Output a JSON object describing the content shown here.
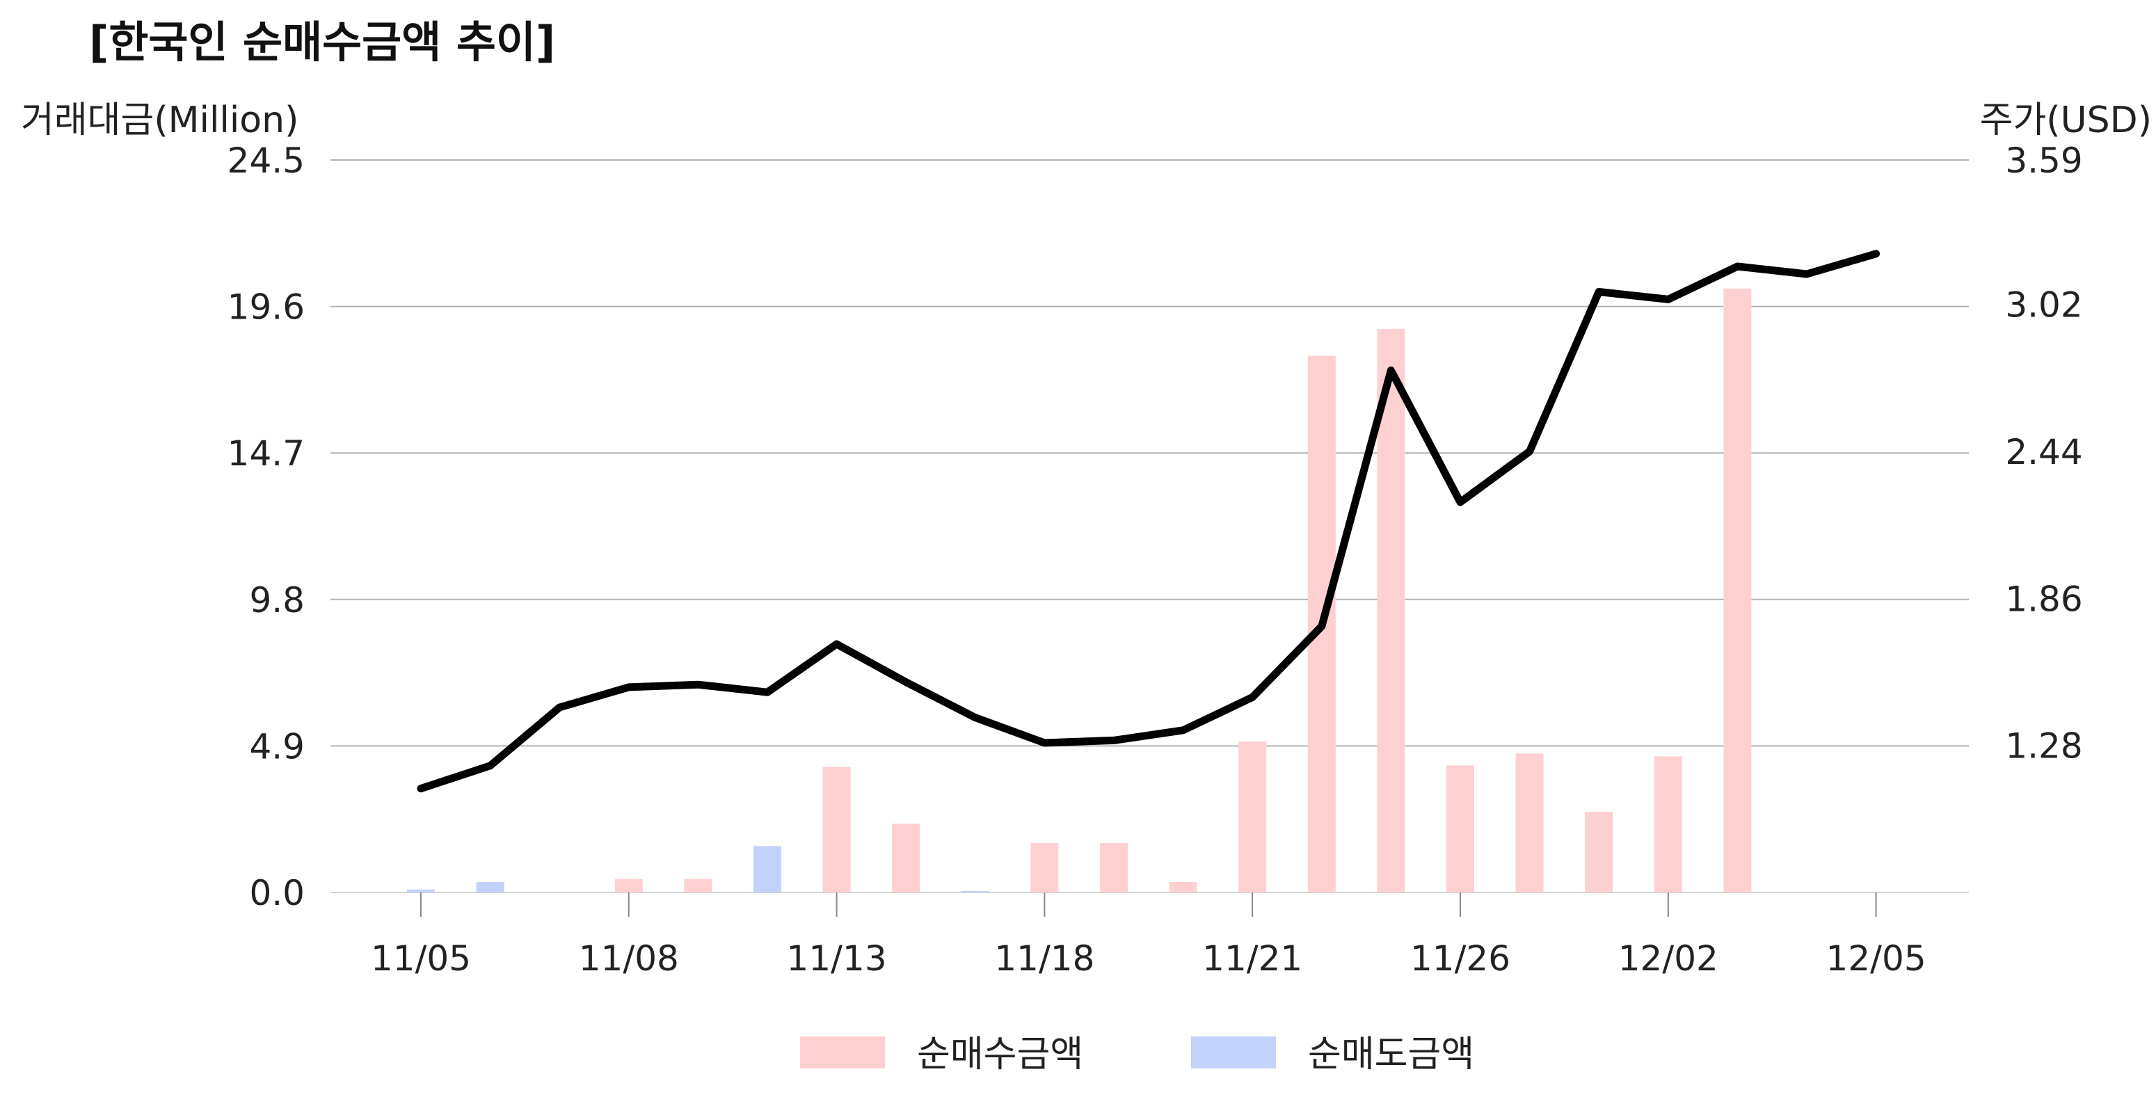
{
  "chart_data": {
    "type": "bar",
    "title": "[한국인 순매수금액 추이]",
    "ylabel": "거래대금(Million)",
    "y2label": "주가(USD)",
    "ylim": [
      0,
      24.5
    ],
    "y2lim": [
      0.7,
      3.59
    ],
    "yticks": [
      "0.0",
      "4.9",
      "9.8",
      "14.7",
      "19.6",
      "24.5"
    ],
    "y2ticks": [
      "1.28",
      "1.86",
      "2.44",
      "3.02",
      "3.59"
    ],
    "y2tick_values": [
      1.28,
      1.86,
      2.44,
      3.02,
      3.59
    ],
    "xtick_labels": [
      "11/05",
      "11/08",
      "11/13",
      "11/18",
      "11/21",
      "11/26",
      "12/02",
      "12/05"
    ],
    "xtick_index": [
      0,
      3,
      6,
      9,
      12,
      15,
      18,
      21
    ],
    "grid": true,
    "legend_position": "bottom",
    "n_points": 22,
    "series": [
      {
        "name": "순매수금액",
        "type": "bar",
        "color": "#ffd0d2",
        "values": [
          0,
          0,
          0,
          0.45,
          0.45,
          0,
          4.2,
          2.3,
          0.05,
          1.65,
          1.65,
          0.35,
          5.05,
          17.95,
          18.85,
          4.25,
          4.65,
          2.7,
          4.55,
          20.2,
          0,
          0
        ]
      },
      {
        "name": "순매도금액",
        "type": "bar",
        "color": "#c3d2fb",
        "values": [
          0.1,
          0.35,
          0,
          0,
          0,
          1.55,
          0,
          0,
          0.05,
          0,
          0,
          0,
          0,
          0,
          0,
          0,
          0,
          0,
          0,
          0,
          0,
          0
        ]
      },
      {
        "name": "주가",
        "type": "line",
        "axis": "right",
        "color": "#000000",
        "values": [
          1.11,
          1.2,
          1.43,
          1.51,
          1.52,
          1.49,
          1.68,
          1.53,
          1.39,
          1.29,
          1.3,
          1.34,
          1.47,
          1.75,
          2.76,
          2.24,
          2.44,
          3.07,
          3.04,
          3.17,
          3.14,
          3.22
        ]
      }
    ]
  }
}
